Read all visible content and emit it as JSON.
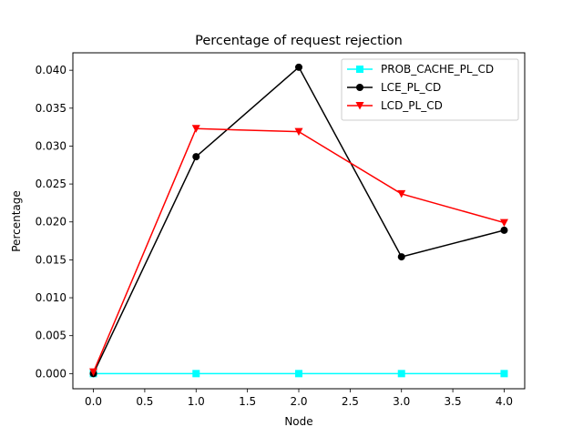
{
  "chart_data": {
    "type": "line",
    "title": "Percentage of request rejection",
    "xlabel": "Node",
    "ylabel": "Percentage",
    "x": [
      0,
      1,
      2,
      3,
      4
    ],
    "xlim": [
      -0.2,
      4.2
    ],
    "ylim": [
      -0.002,
      0.0423
    ],
    "xticks": [
      0.0,
      0.5,
      1.0,
      1.5,
      2.0,
      2.5,
      3.0,
      3.5,
      4.0
    ],
    "xtick_labels": [
      "0.0",
      "0.5",
      "1.0",
      "1.5",
      "2.0",
      "2.5",
      "3.0",
      "3.5",
      "4.0"
    ],
    "yticks": [
      0.0,
      0.005,
      0.01,
      0.015,
      0.02,
      0.025,
      0.03,
      0.035,
      0.04
    ],
    "ytick_labels": [
      "0.000",
      "0.005",
      "0.010",
      "0.015",
      "0.020",
      "0.025",
      "0.030",
      "0.035",
      "0.040"
    ],
    "grid": false,
    "legend_position": "top-right",
    "series": [
      {
        "name": "PROB_CACHE_PL_CD",
        "color": "#00ffff",
        "marker": "square",
        "values": [
          0.0,
          0.0,
          0.0,
          0.0,
          0.0
        ]
      },
      {
        "name": "LCE_PL_CD",
        "color": "#000000",
        "marker": "circle",
        "values": [
          0.0,
          0.0286,
          0.0404,
          0.0154,
          0.0189
        ]
      },
      {
        "name": "LCD_PL_CD",
        "color": "#ff0000",
        "marker": "triangle-down",
        "values": [
          0.0002,
          0.0323,
          0.0319,
          0.0237,
          0.0199
        ]
      }
    ]
  }
}
